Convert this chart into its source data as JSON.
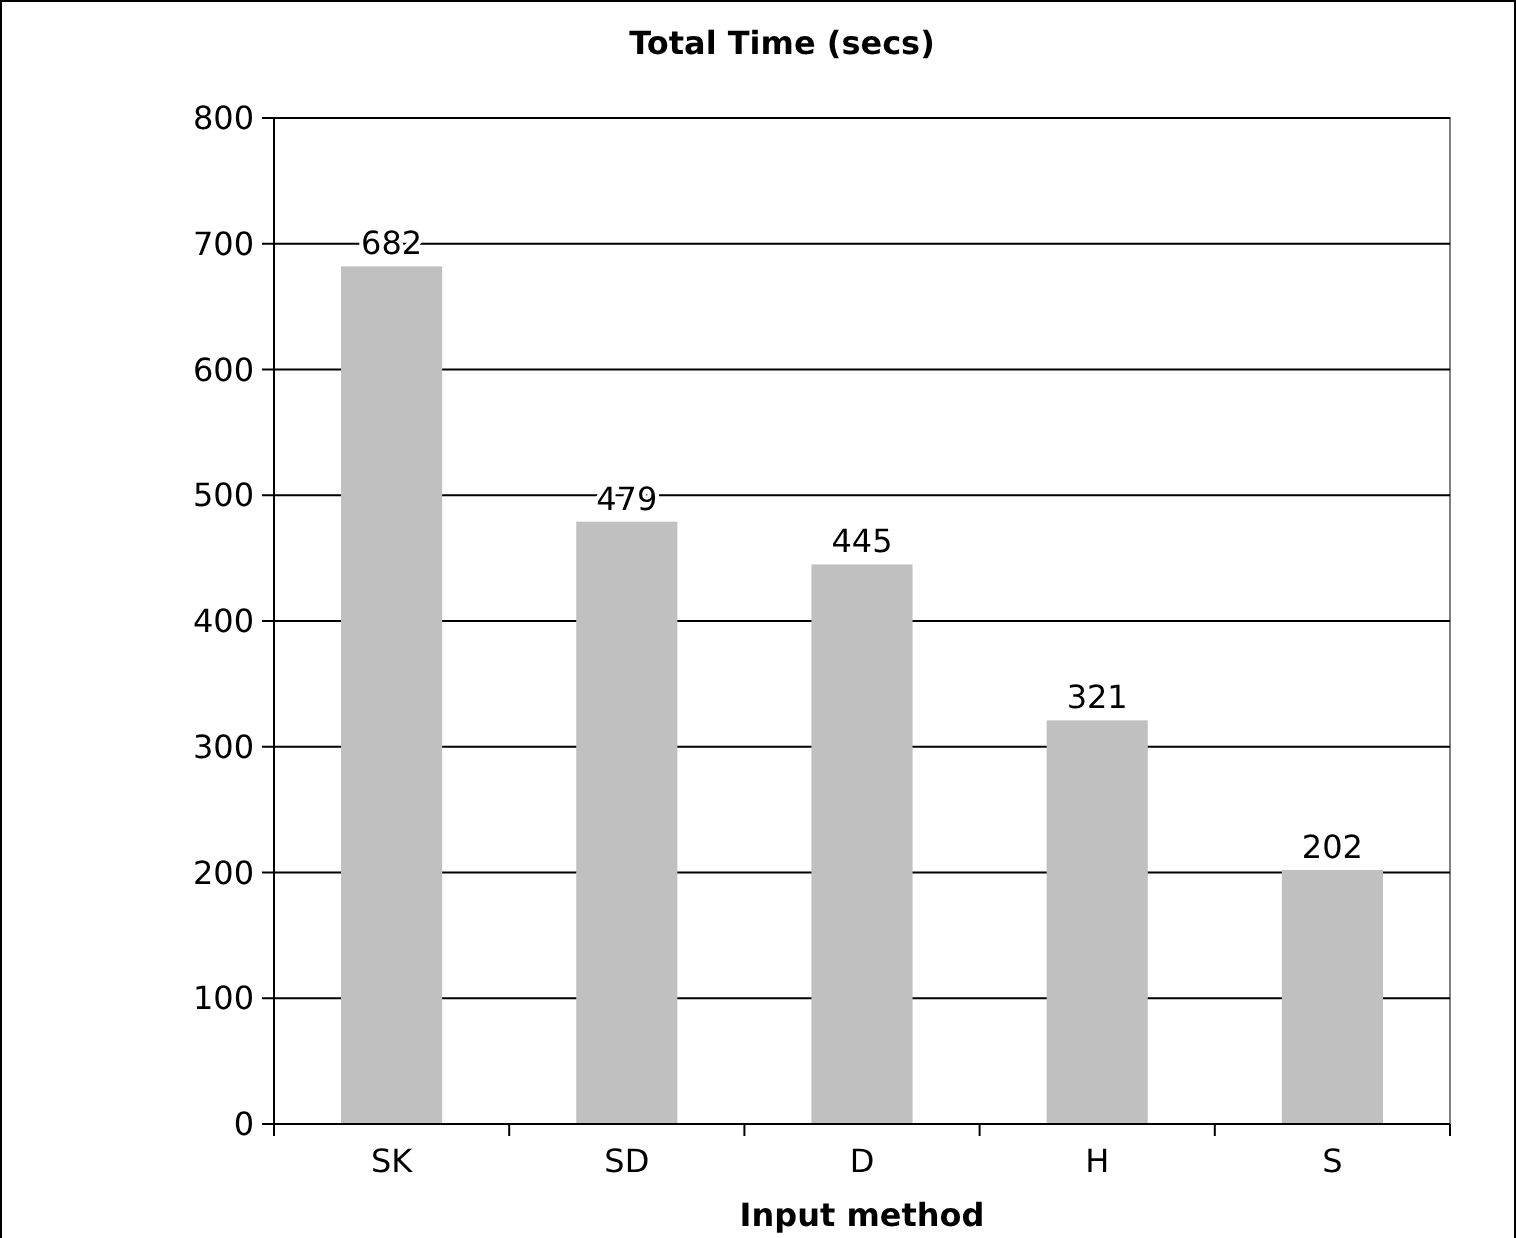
{
  "chart_data": {
    "type": "bar",
    "title": "Total Time (secs)",
    "xlabel": "Input method",
    "categories": [
      "SK",
      "SD",
      "D",
      "H",
      "S"
    ],
    "values": [
      682,
      479,
      445,
      321,
      202
    ],
    "color": "#c0c0c0",
    "ylim": [
      0,
      800
    ],
    "yticks": [
      0,
      100,
      200,
      300,
      400,
      500,
      600,
      700,
      800
    ],
    "grid": "y",
    "data_labels": true
  }
}
